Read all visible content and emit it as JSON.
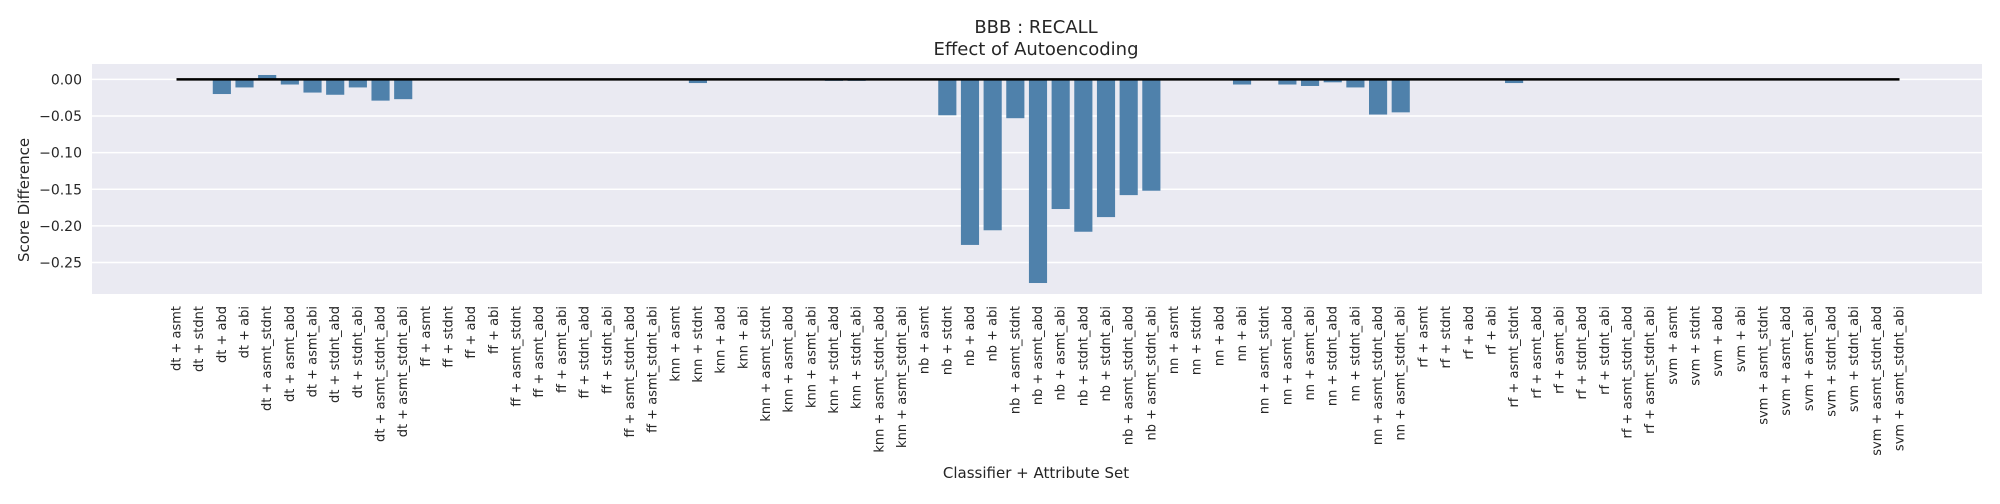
{
  "chart_data": {
    "type": "bar",
    "title": "BBB : RECALL",
    "subtitle": "Effect of Autoencoding",
    "xlabel": "Classifier + Attribute Set",
    "ylabel": "Score Difference",
    "ylim": [
      -0.293,
      0.021
    ],
    "yticks": [
      0.0,
      -0.05,
      -0.1,
      -0.15,
      -0.2,
      -0.25
    ],
    "ytick_labels": [
      "0.00",
      "−0.05",
      "−0.10",
      "−0.15",
      "−0.20",
      "−0.25"
    ],
    "grid": true,
    "reference_line": 0,
    "categories": [
      "dt + asmt",
      "dt + stdnt",
      "dt + abd",
      "dt + abi",
      "dt + asmt_stdnt",
      "dt + asmt_abd",
      "dt + asmt_abi",
      "dt + stdnt_abd",
      "dt + stdnt_abi",
      "dt + asmt_stdnt_abd",
      "dt + asmt_stdnt_abi",
      "ff + asmt",
      "ff + stdnt",
      "ff + abd",
      "ff + abi",
      "ff + asmt_stdnt",
      "ff + asmt_abd",
      "ff + asmt_abi",
      "ff + stdnt_abd",
      "ff + stdnt_abi",
      "ff + asmt_stdnt_abd",
      "ff + asmt_stdnt_abi",
      "knn + asmt",
      "knn + stdnt",
      "knn + abd",
      "knn + abi",
      "knn + asmt_stdnt",
      "knn + asmt_abd",
      "knn + asmt_abi",
      "knn + stdnt_abd",
      "knn + stdnt_abi",
      "knn + asmt_stdnt_abd",
      "knn + asmt_stdnt_abi",
      "nb + asmt",
      "nb + stdnt",
      "nb + abd",
      "nb + abi",
      "nb + asmt_stdnt",
      "nb + asmt_abd",
      "nb + asmt_abi",
      "nb + stdnt_abd",
      "nb + stdnt_abi",
      "nb + asmt_stdnt_abd",
      "nb + asmt_stdnt_abi",
      "nn + asmt",
      "nn + stdnt",
      "nn + abd",
      "nn + abi",
      "nn + asmt_stdnt",
      "nn + asmt_abd",
      "nn + asmt_abi",
      "nn + stdnt_abd",
      "nn + stdnt_abi",
      "nn + asmt_stdnt_abd",
      "nn + asmt_stdnt_abi",
      "rf + asmt",
      "rf + stdnt",
      "rf + abd",
      "rf + abi",
      "rf + asmt_stdnt",
      "rf + asmt_abd",
      "rf + asmt_abi",
      "rf + stdnt_abd",
      "rf + stdnt_abi",
      "rf + asmt_stdnt_abd",
      "rf + asmt_stdnt_abi",
      "svm + asmt",
      "svm + stdnt",
      "svm + abd",
      "svm + abi",
      "svm + asmt_stdnt",
      "svm + asmt_abd",
      "svm + asmt_abi",
      "svm + stdnt_abd",
      "svm + stdnt_abi",
      "svm + asmt_stdnt_abd",
      "svm + asmt_stdnt_abi"
    ],
    "values": [
      0.0,
      0.0,
      -0.02,
      -0.011,
      0.006,
      -0.007,
      -0.018,
      -0.021,
      -0.011,
      -0.029,
      -0.027,
      0.0,
      0.0,
      0.0,
      0.0,
      0.0,
      0.0,
      0.0,
      0.0,
      0.0,
      0.0,
      0.0,
      0.0,
      -0.005,
      0.0,
      0.0,
      0.0,
      0.0,
      0.0,
      -0.002,
      -0.002,
      0.0,
      0.0,
      0.0,
      -0.049,
      -0.226,
      -0.206,
      -0.053,
      -0.278,
      -0.177,
      -0.208,
      -0.188,
      -0.158,
      -0.152,
      0.0,
      0.0,
      0.0,
      -0.007,
      0.0,
      -0.007,
      -0.009,
      -0.004,
      -0.011,
      -0.048,
      -0.045,
      0.0,
      0.0,
      0.0,
      0.0,
      -0.005,
      0.0,
      0.0,
      0.0,
      0.0,
      0.0,
      0.0,
      0.0,
      0.0,
      0.0,
      0.0,
      0.0,
      0.0,
      0.0,
      0.0,
      0.0,
      0.0,
      0.0
    ],
    "colors": {
      "bar": "#4f81ab",
      "axes_background": "#eaeaf2",
      "grid": "#ffffff",
      "reference_line": "#000000"
    }
  }
}
